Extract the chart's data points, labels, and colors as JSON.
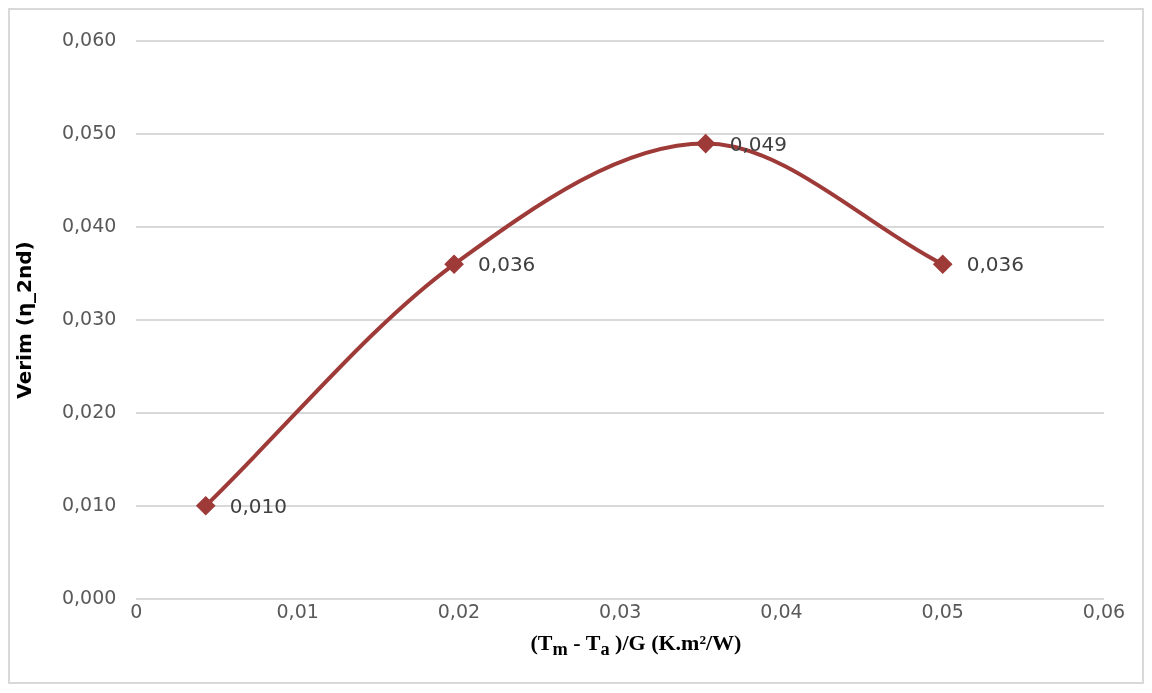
{
  "chart_data": {
    "type": "line",
    "xlabel": "(T$_{m}$ - T$_{a}$ )/G (K.m²/W)",
    "ylabel": "Verim (η_2nd)",
    "x": [
      0.0043,
      0.0197,
      0.0353,
      0.05
    ],
    "series": [
      {
        "color": "#9e3a38",
        "values": [
          0.01,
          0.036,
          0.049,
          0.036
        ],
        "value_labels": [
          "0,010",
          "0,036",
          "0,049",
          "0,036"
        ]
      }
    ],
    "xlim": [
      0,
      0.06
    ],
    "xticks": [
      {
        "value": 0,
        "label": "0"
      },
      {
        "value": 0.01,
        "label": "0,01"
      },
      {
        "value": 0.02,
        "label": "0,02"
      },
      {
        "value": 0.03,
        "label": "0,03"
      },
      {
        "value": 0.04,
        "label": "0,04"
      },
      {
        "value": 0.05,
        "label": "0,05"
      },
      {
        "value": 0.06,
        "label": "0,06"
      }
    ],
    "ylim": [
      0,
      0.06
    ],
    "yticks": [
      {
        "value": 0,
        "label": "0,000"
      },
      {
        "value": 0.01,
        "label": "0,010"
      },
      {
        "value": 0.02,
        "label": "0,020"
      },
      {
        "value": 0.03,
        "label": "0,030"
      },
      {
        "value": 0.04,
        "label": "0,040"
      },
      {
        "value": 0.05,
        "label": "0,050"
      },
      {
        "value": 0.06,
        "label": "0,060"
      }
    ],
    "grid": "y",
    "marker": "diamond",
    "line_style": "solid",
    "legend": false
  }
}
